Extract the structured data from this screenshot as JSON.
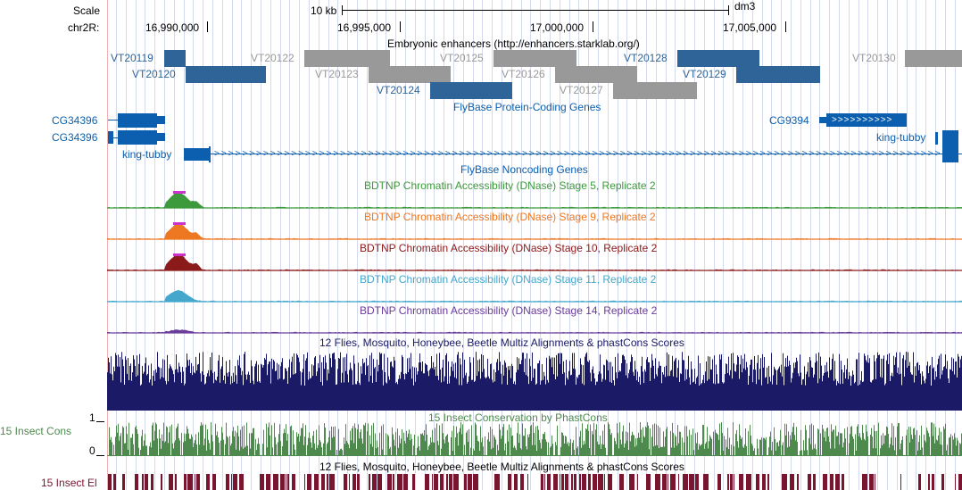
{
  "ruler": {
    "scale_label": "Scale",
    "chrom_label": "chr2R:",
    "scale_text": "10 kb",
    "assembly": "dm3",
    "positions": [
      "16,990,000",
      "16,995,000",
      "17,000,000",
      "17,005,000"
    ]
  },
  "tracks": {
    "enhancers": {
      "title": "Embryonic enhancers (http://enhancers.starklab.org/)",
      "items": [
        {
          "name": "VT20119",
          "color": "#2f6499"
        },
        {
          "name": "VT20120",
          "color": "#2f6499"
        },
        {
          "name": "VT20122",
          "color": "#999999"
        },
        {
          "name": "VT20123",
          "color": "#999999"
        },
        {
          "name": "VT20124",
          "color": "#2f6499"
        },
        {
          "name": "VT20125",
          "color": "#999999"
        },
        {
          "name": "VT20126",
          "color": "#999999"
        },
        {
          "name": "VT20127",
          "color": "#999999"
        },
        {
          "name": "VT20128",
          "color": "#2f6499"
        },
        {
          "name": "VT20129",
          "color": "#2f6499"
        },
        {
          "name": "VT20130",
          "color": "#999999"
        }
      ]
    },
    "protein_coding": {
      "title": "FlyBase Protein-Coding Genes",
      "genes": [
        {
          "name": "CG34396"
        },
        {
          "name": "CG34396"
        },
        {
          "name": "king-tubby"
        },
        {
          "name": "CG9394"
        },
        {
          "name": "king-tubby"
        }
      ]
    },
    "noncoding": {
      "title": "FlyBase Noncoding Genes"
    },
    "dnase": [
      {
        "title": "BDTNP Chromatin Accessibility (DNase) Stage 5, Replicate 2",
        "color": "#3c9a3c"
      },
      {
        "title": "BDTNP Chromatin Accessibility (DNase) Stage 9, Replicate 2",
        "color": "#ee7722"
      },
      {
        "title": "BDTNP Chromatin Accessibility (DNase) Stage 10, Replicate 2",
        "color": "#8b1a1a"
      },
      {
        "title": "BDTNP Chromatin Accessibility (DNase) Stage 11, Replicate 2",
        "color": "#44a8cc"
      },
      {
        "title": "BDTNP Chromatin Accessibility (DNase) Stage 14, Replicate 2",
        "color": "#6a3d9a"
      }
    ],
    "multiz": {
      "title": "12 Flies, Mosquito, Honeybee, Beetle Multiz Alignments & phastCons Scores",
      "color": "#1a1a66"
    },
    "cons": {
      "title": "15 Insect Conservation by PhastCons",
      "side_label": "15 Insect Cons",
      "axis_max": "1",
      "axis_min": "0",
      "color": "#4e8a4e"
    },
    "elements": {
      "title": "12 Flies, Mosquito, Honeybee, Beetle Multiz Alignments & phastCons Scores",
      "side_label": "15 Insect El",
      "color": "#7a1530"
    }
  }
}
